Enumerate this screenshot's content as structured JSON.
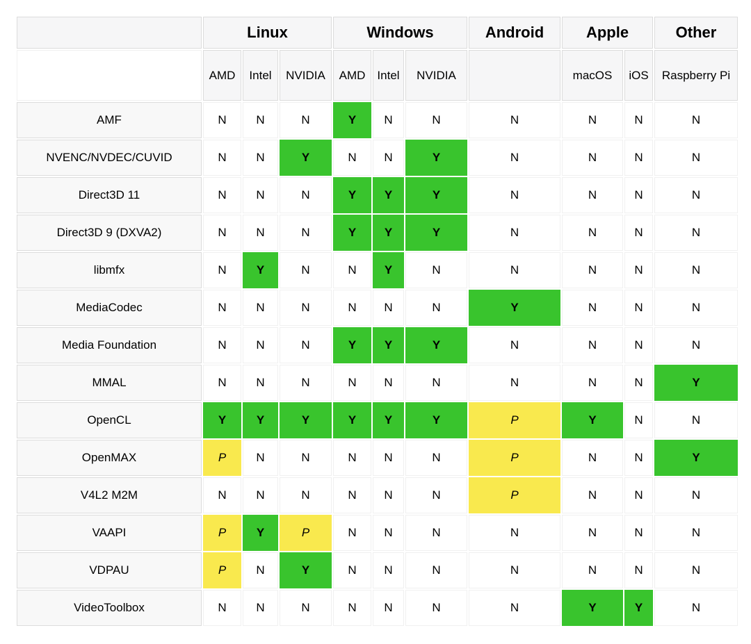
{
  "colors": {
    "yes": "#39c42d",
    "partial": "#f9e94e",
    "header_bg": "#f6f6f7",
    "label_bg": "#f8f8f8",
    "border_strong": "#dcdcdc",
    "border_light": "#f0f0f0"
  },
  "table": {
    "platform_groups": [
      {
        "key": "linux",
        "label": "Linux",
        "colspan": 3
      },
      {
        "key": "windows",
        "label": "Windows",
        "colspan": 3
      },
      {
        "key": "android",
        "label": "Android",
        "colspan": 1
      },
      {
        "key": "apple",
        "label": "Apple",
        "colspan": 2
      },
      {
        "key": "other",
        "label": "Other",
        "colspan": 1
      }
    ],
    "vendor_columns": [
      {
        "key": "linux-amd",
        "label": "AMD"
      },
      {
        "key": "linux-intel",
        "label": "Intel"
      },
      {
        "key": "linux-nvidia",
        "label": "NVIDIA"
      },
      {
        "key": "windows-amd",
        "label": "AMD"
      },
      {
        "key": "windows-intel",
        "label": "Intel"
      },
      {
        "key": "windows-nvidia",
        "label": "NVIDIA"
      },
      {
        "key": "android",
        "label": ""
      },
      {
        "key": "macos",
        "label": "macOS"
      },
      {
        "key": "ios",
        "label": "iOS"
      },
      {
        "key": "raspberry-pi",
        "label": "Raspberry Pi"
      }
    ],
    "rows": [
      {
        "label": "AMF",
        "values": [
          "N",
          "N",
          "N",
          "Y",
          "N",
          "N",
          "N",
          "N",
          "N",
          "N"
        ]
      },
      {
        "label": "NVENC/NVDEC/CUVID",
        "values": [
          "N",
          "N",
          "Y",
          "N",
          "N",
          "Y",
          "N",
          "N",
          "N",
          "N"
        ]
      },
      {
        "label": "Direct3D 11",
        "values": [
          "N",
          "N",
          "N",
          "Y",
          "Y",
          "Y",
          "N",
          "N",
          "N",
          "N"
        ]
      },
      {
        "label": "Direct3D 9 (DXVA2)",
        "values": [
          "N",
          "N",
          "N",
          "Y",
          "Y",
          "Y",
          "N",
          "N",
          "N",
          "N"
        ]
      },
      {
        "label": "libmfx",
        "values": [
          "N",
          "Y",
          "N",
          "N",
          "Y",
          "N",
          "N",
          "N",
          "N",
          "N"
        ]
      },
      {
        "label": "MediaCodec",
        "values": [
          "N",
          "N",
          "N",
          "N",
          "N",
          "N",
          "Y",
          "N",
          "N",
          "N"
        ]
      },
      {
        "label": "Media Foundation",
        "values": [
          "N",
          "N",
          "N",
          "Y",
          "Y",
          "Y",
          "N",
          "N",
          "N",
          "N"
        ]
      },
      {
        "label": "MMAL",
        "values": [
          "N",
          "N",
          "N",
          "N",
          "N",
          "N",
          "N",
          "N",
          "N",
          "Y"
        ]
      },
      {
        "label": "OpenCL",
        "values": [
          "Y",
          "Y",
          "Y",
          "Y",
          "Y",
          "Y",
          "P",
          "Y",
          "N",
          "N"
        ]
      },
      {
        "label": "OpenMAX",
        "values": [
          "P",
          "N",
          "N",
          "N",
          "N",
          "N",
          "P",
          "N",
          "N",
          "Y"
        ]
      },
      {
        "label": "V4L2 M2M",
        "values": [
          "N",
          "N",
          "N",
          "N",
          "N",
          "N",
          "P",
          "N",
          "N",
          "N"
        ]
      },
      {
        "label": "VAAPI",
        "values": [
          "P",
          "Y",
          "P",
          "N",
          "N",
          "N",
          "N",
          "N",
          "N",
          "N"
        ]
      },
      {
        "label": "VDPAU",
        "values": [
          "P",
          "N",
          "Y",
          "N",
          "N",
          "N",
          "N",
          "N",
          "N",
          "N"
        ]
      },
      {
        "label": "VideoToolbox",
        "values": [
          "N",
          "N",
          "N",
          "N",
          "N",
          "N",
          "N",
          "Y",
          "Y",
          "N"
        ]
      }
    ]
  }
}
